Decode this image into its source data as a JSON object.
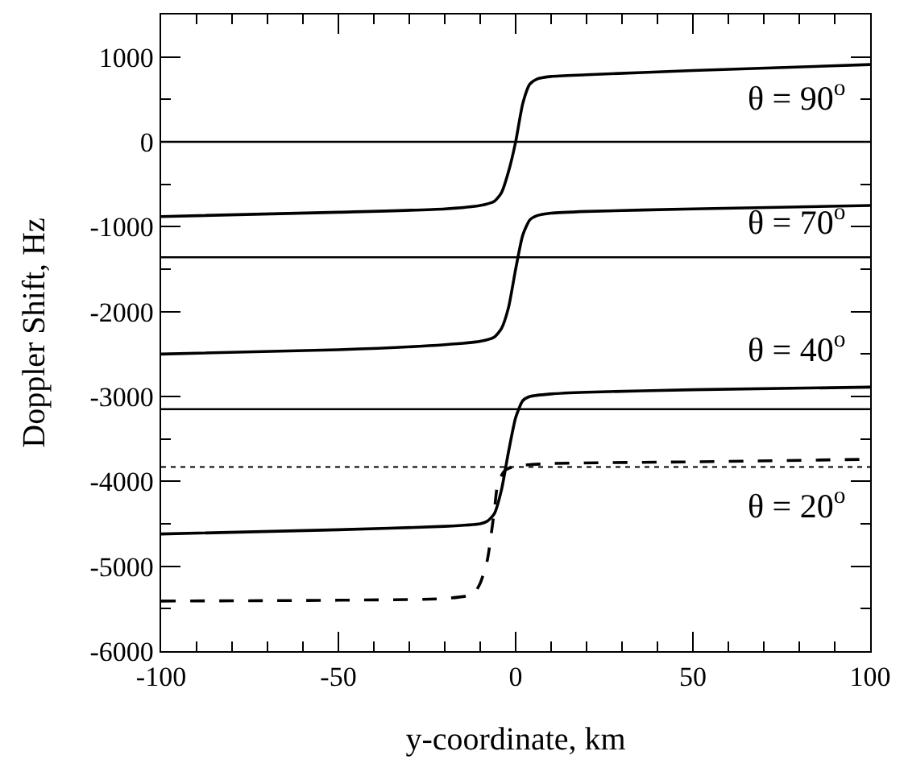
{
  "chart_data": {
    "type": "line",
    "xlabel": "y-coordinate, km",
    "ylabel": "Doppler Shift, Hz",
    "xlim": [
      -100,
      100
    ],
    "xticks": [
      -100,
      -50,
      0,
      50,
      100
    ],
    "ylim": [
      -6000,
      1500
    ],
    "yticks": [
      -6000,
      -5000,
      -4000,
      -3000,
      -2000,
      -1000,
      0,
      1000
    ],
    "grid": false,
    "marker": "none",
    "series": [
      {
        "color": "#000000",
        "line_style": "solid",
        "x": [
          -100,
          -50,
          -20,
          -10,
          -6,
          -4,
          -2,
          0,
          2,
          4,
          6,
          10,
          20,
          50,
          100
        ],
        "values": [
          -880,
          -830,
          -790,
          -750,
          -700,
          -600,
          -350,
          0,
          450,
          680,
          740,
          770,
          790,
          840,
          910
        ]
      },
      {
        "color": "#000000",
        "line_style": "solid",
        "x": [
          -100,
          -50,
          -20,
          -10,
          -6,
          -4,
          -2,
          0,
          2,
          4,
          6,
          10,
          20,
          50,
          100
        ],
        "values": [
          -2500,
          -2450,
          -2390,
          -2350,
          -2300,
          -2200,
          -1950,
          -1500,
          -1100,
          -920,
          -870,
          -840,
          -820,
          -790,
          -750
        ]
      },
      {
        "color": "#000000",
        "line_style": "solid",
        "x": [
          -100,
          -50,
          -20,
          -10,
          -8,
          -6,
          -4,
          -2,
          0,
          2,
          4,
          10,
          20,
          50,
          100
        ],
        "values": [
          -4620,
          -4570,
          -4530,
          -4500,
          -4470,
          -4380,
          -4100,
          -3650,
          -3250,
          -3050,
          -3000,
          -2970,
          -2950,
          -2920,
          -2890
        ]
      },
      {
        "color": "#000000",
        "line_style": "dashed",
        "x": [
          -100,
          -50,
          -20,
          -12,
          -10,
          -8,
          -6,
          -5,
          -3,
          0,
          10,
          50,
          100
        ],
        "values": [
          -5410,
          -5400,
          -5380,
          -5330,
          -5200,
          -4930,
          -4340,
          -4020,
          -3870,
          -3820,
          -3790,
          -3770,
          -3740
        ]
      }
    ],
    "ref_lines": [
      {
        "axis": "y",
        "value": 0,
        "color": "#000000",
        "line_style": "solid"
      },
      {
        "axis": "y",
        "value": -1360,
        "color": "#000000",
        "line_style": "solid"
      },
      {
        "axis": "y",
        "value": -3150,
        "color": "#000000",
        "line_style": "solid"
      },
      {
        "axis": "y",
        "value": -3830,
        "color": "#000000",
        "line_style": "dotted"
      }
    ],
    "annotations": [
      "θ = 90$^{o}$",
      "θ = 70$^{o}$",
      "θ = 40$^{o}$",
      "θ = 20$^{o}$"
    ]
  }
}
